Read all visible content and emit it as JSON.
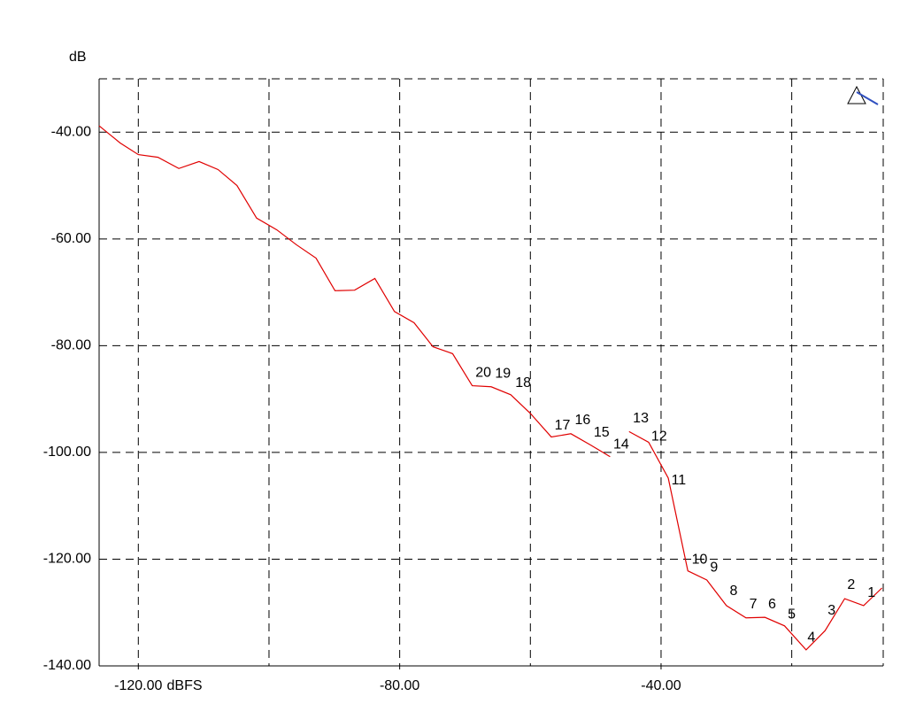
{
  "chart_data": {
    "type": "line",
    "y_label": "dB",
    "x_label": "dBFS",
    "x": [
      -126,
      -122.8,
      -120,
      -117,
      -113.8,
      -110.7,
      -107.8,
      -104.9,
      -101.9,
      -98.8,
      -95.8,
      -92.8,
      -89.9,
      -86.9,
      -83.8,
      -80.8,
      -77.8,
      -74.9,
      -71.9,
      -68.9,
      -66,
      -63,
      -60,
      -56.8,
      -53.8,
      -50.8,
      -47.8,
      -46.3,
      -44.9,
      -41.9,
      -38.9,
      -35.9,
      -33,
      -30,
      -27,
      -24.1,
      -21.1,
      -17.8,
      -14.9,
      -11.9,
      -9,
      -6.2
    ],
    "series": [
      {
        "color": "#e00000",
        "values": [
          -38.8,
          -42,
          -44.2,
          -44.7,
          -46.8,
          -45.5,
          -47,
          -50,
          -56.1,
          -58.3,
          -61.1,
          -63.6,
          -69.7,
          -69.6,
          -67.4,
          -73.6,
          -75.7,
          -80.2,
          -81.5,
          -87.5,
          -87.7,
          -89.2,
          -92.7,
          -97.1,
          -96.5,
          -98.6,
          -100.8,
          null,
          -96.1,
          -98.1,
          -104.8,
          -122.2,
          -123.9,
          -128.7,
          -131,
          -130.9,
          -132.5,
          -137,
          -133.4,
          -127.4,
          -128.7,
          -125.4
        ]
      }
    ],
    "xlim": [
      -126,
      -6
    ],
    "ylim": [
      -140,
      -30
    ],
    "xticks": [
      {
        "value": -120,
        "label": "-120.00"
      },
      {
        "value": -80,
        "label": "-80.00"
      },
      {
        "value": -40,
        "label": "-40.00"
      }
    ],
    "x_grid": [
      -120,
      -100,
      -80,
      -60,
      -40,
      -20
    ],
    "yticks": [
      {
        "value": -40,
        "label": "-40.00"
      },
      {
        "value": -60,
        "label": "-60.00"
      },
      {
        "value": -80,
        "label": "-80.00"
      },
      {
        "value": -100,
        "label": "-100.00"
      },
      {
        "value": -120,
        "label": "-120.00"
      },
      {
        "value": -140,
        "label": "-140.00"
      }
    ],
    "grid": true,
    "annotations": [
      {
        "text": "1",
        "x": -7.8,
        "y": -126.4
      },
      {
        "text": "2",
        "x": -10.9,
        "y": -124.9
      },
      {
        "text": "3",
        "x": -13.9,
        "y": -129.7
      },
      {
        "text": "4",
        "x": -17,
        "y": -134.7
      },
      {
        "text": "5",
        "x": -20,
        "y": -130.4
      },
      {
        "text": "6",
        "x": -23,
        "y": -128.5
      },
      {
        "text": "7",
        "x": -25.9,
        "y": -128.5
      },
      {
        "text": "8",
        "x": -28.9,
        "y": -126
      },
      {
        "text": "9",
        "x": -31.9,
        "y": -121.6
      },
      {
        "text": "10",
        "x": -34.1,
        "y": -120.1
      },
      {
        "text": "11",
        "x": -37.3,
        "y": -105.3
      },
      {
        "text": "12",
        "x": -40.3,
        "y": -97.1
      },
      {
        "text": "13",
        "x": -43.1,
        "y": -93.7
      },
      {
        "text": "14",
        "x": -46.1,
        "y": -98.6
      },
      {
        "text": "15",
        "x": -49.1,
        "y": -96.3
      },
      {
        "text": "16",
        "x": -52,
        "y": -94
      },
      {
        "text": "17",
        "x": -55.1,
        "y": -95
      },
      {
        "text": "18",
        "x": -61.1,
        "y": -87
      },
      {
        "text": "19",
        "x": -64.2,
        "y": -85.3
      },
      {
        "text": "20",
        "x": -67.2,
        "y": -85.1
      }
    ]
  }
}
